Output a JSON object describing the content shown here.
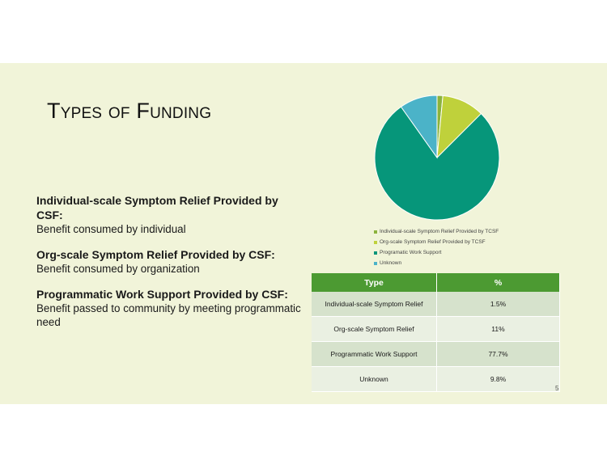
{
  "slide": {
    "title": "Types of Funding",
    "definitions": [
      {
        "term": "Individual-scale Symptom Relief Provided by CSF:",
        "desc": "Benefit consumed by individual"
      },
      {
        "term": "Org-scale Symptom Relief Provided by CSF:",
        "desc": "Benefit consumed by organization"
      },
      {
        "term": "Programmatic Work Support Provided by CSF:",
        "desc": "Benefit passed to community by meeting programmatic need"
      }
    ],
    "page_number": "5"
  },
  "chart_data": {
    "type": "pie",
    "categories": [
      "Individual-scale Symptom Relief Provided by TCSF",
      "Org-scale Symptom Relief Provided by TCSF",
      "Programatic Work Support",
      "Unknown"
    ],
    "values": [
      1.5,
      11,
      77.7,
      9.8
    ],
    "colors": [
      "#8cb33c",
      "#bfd13b",
      "#06967a",
      "#4bb3c8"
    ],
    "legend": "bottom"
  },
  "table": {
    "headers": [
      "Type",
      "%"
    ],
    "rows": [
      [
        "Individual-scale Symptom Relief",
        "1.5%"
      ],
      [
        "Org-scale Symptom Relief",
        "11%"
      ],
      [
        "Programmatic Work Support",
        "77.7%"
      ],
      [
        "Unknown",
        "9.8%"
      ]
    ],
    "colors": {
      "header": "#4c9a32",
      "row_odd": "#d6e2cc",
      "row_even": "#eaf0e2"
    }
  }
}
